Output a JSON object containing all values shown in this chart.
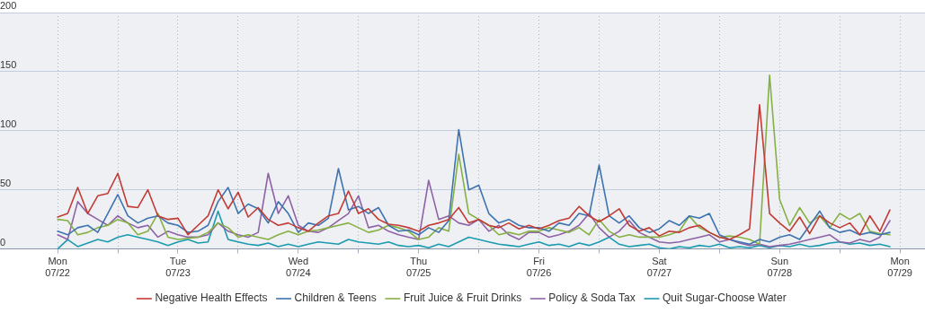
{
  "chart_data": {
    "type": "line",
    "x": [
      "--07-22T00:00",
      "--07-22T02:00",
      "--07-22T04:00",
      "--07-22T06:00",
      "--07-22T08:00",
      "--07-22T10:00",
      "--07-22T12:00",
      "--07-22T14:00",
      "--07-22T16:00",
      "--07-22T18:00",
      "--07-22T20:00",
      "--07-22T22:00",
      "--07-23T00:00",
      "--07-23T02:00",
      "--07-23T04:00",
      "--07-23T06:00",
      "--07-23T08:00",
      "--07-23T10:00",
      "--07-23T12:00",
      "--07-23T14:00",
      "--07-23T16:00",
      "--07-23T18:00",
      "--07-23T20:00",
      "--07-23T22:00",
      "--07-24T00:00",
      "--07-24T02:00",
      "--07-24T04:00",
      "--07-24T06:00",
      "--07-24T08:00",
      "--07-24T10:00",
      "--07-24T12:00",
      "--07-24T14:00",
      "--07-24T16:00",
      "--07-24T18:00",
      "--07-24T20:00",
      "--07-24T22:00",
      "--07-25T00:00",
      "--07-25T02:00",
      "--07-25T04:00",
      "--07-25T06:00",
      "--07-25T08:00",
      "--07-25T10:00",
      "--07-25T12:00",
      "--07-25T14:00",
      "--07-25T16:00",
      "--07-25T18:00",
      "--07-25T20:00",
      "--07-25T22:00",
      "--07-26T00:00",
      "--07-26T02:00",
      "--07-26T04:00",
      "--07-26T06:00",
      "--07-26T08:00",
      "--07-26T10:00",
      "--07-26T12:00",
      "--07-26T14:00",
      "--07-26T16:00",
      "--07-26T18:00",
      "--07-26T20:00",
      "--07-26T22:00",
      "--07-27T00:00",
      "--07-27T02:00",
      "--07-27T04:00",
      "--07-27T06:00",
      "--07-27T08:00",
      "--07-27T10:00",
      "--07-27T12:00",
      "--07-27T14:00",
      "--07-27T16:00",
      "--07-27T18:00",
      "--07-27T20:00",
      "--07-27T22:00",
      "--07-28T00:00",
      "--07-28T02:00",
      "--07-28T04:00",
      "--07-28T06:00",
      "--07-28T08:00",
      "--07-28T10:00",
      "--07-28T12:00",
      "--07-28T14:00",
      "--07-28T16:00",
      "--07-28T18:00",
      "--07-28T20:00",
      "--07-28T22:00"
    ],
    "series": [
      {
        "name": "Negative Health Effects",
        "color": "#c23b35",
        "values": [
          27,
          30,
          52,
          30,
          45,
          47,
          64,
          36,
          35,
          50,
          28,
          25,
          26,
          12,
          20,
          28,
          50,
          34,
          48,
          27,
          35,
          25,
          20,
          22,
          18,
          15,
          22,
          28,
          30,
          49,
          30,
          34,
          25,
          21,
          20,
          18,
          15,
          20,
          22,
          25,
          35,
          22,
          25,
          20,
          18,
          22,
          17,
          20,
          17,
          20,
          24,
          26,
          36,
          28,
          23,
          28,
          34,
          20,
          15,
          18,
          11,
          15,
          14,
          18,
          20,
          14,
          10,
          8,
          12,
          17,
          122,
          30,
          22,
          15,
          27,
          13,
          28,
          22,
          18,
          22,
          12,
          28,
          15,
          33
        ]
      },
      {
        "name": "Children & Teens",
        "color": "#3e73b0",
        "values": [
          15,
          12,
          18,
          20,
          14,
          30,
          46,
          28,
          22,
          26,
          28,
          22,
          20,
          14,
          15,
          20,
          40,
          52,
          30,
          38,
          34,
          22,
          40,
          30,
          14,
          22,
          20,
          26,
          68,
          33,
          36,
          30,
          35,
          20,
          15,
          16,
          12,
          18,
          14,
          24,
          101,
          50,
          54,
          30,
          22,
          25,
          20,
          18,
          18,
          15,
          22,
          20,
          30,
          28,
          71,
          28,
          22,
          28,
          18,
          14,
          17,
          24,
          20,
          28,
          26,
          30,
          12,
          8,
          6,
          4,
          8,
          6,
          10,
          12,
          8,
          20,
          32,
          18,
          14,
          16,
          12,
          14,
          12,
          14
        ]
      },
      {
        "name": "Fruit Juice & Fruit Drinks",
        "color": "#86b043",
        "values": [
          25,
          24,
          12,
          14,
          18,
          20,
          25,
          22,
          12,
          15,
          30,
          10,
          8,
          9,
          10,
          14,
          22,
          18,
          10,
          12,
          10,
          8,
          12,
          15,
          12,
          15,
          16,
          18,
          20,
          22,
          18,
          14,
          16,
          20,
          18,
          15,
          8,
          10,
          18,
          15,
          80,
          30,
          25,
          20,
          12,
          14,
          12,
          15,
          15,
          18,
          16,
          14,
          18,
          12,
          25,
          15,
          10,
          12,
          10,
          10,
          10,
          12,
          15,
          28,
          18,
          14,
          10,
          11,
          10,
          8,
          4,
          147,
          42,
          20,
          35,
          22,
          28,
          18,
          30,
          25,
          30,
          15,
          13,
          12
        ]
      },
      {
        "name": "Policy & Soda Tax",
        "color": "#8e62a6",
        "values": [
          12,
          8,
          40,
          30,
          25,
          20,
          28,
          22,
          18,
          20,
          10,
          15,
          12,
          10,
          10,
          12,
          22,
          15,
          12,
          10,
          14,
          64,
          30,
          45,
          20,
          15,
          14,
          18,
          24,
          30,
          45,
          18,
          20,
          15,
          12,
          10,
          8,
          58,
          25,
          28,
          22,
          20,
          25,
          15,
          20,
          12,
          8,
          14,
          14,
          10,
          12,
          15,
          20,
          30,
          18,
          10,
          15,
          24,
          14,
          10,
          6,
          5,
          6,
          8,
          10,
          12,
          6,
          8,
          5,
          3,
          4,
          2,
          3,
          4,
          6,
          8,
          10,
          12,
          6,
          5,
          8,
          6,
          10,
          24
        ]
      },
      {
        "name": "Quit Sugar-Choose Water",
        "color": "#1b9bb0",
        "values": [
          0,
          8,
          2,
          5,
          8,
          6,
          10,
          12,
          10,
          8,
          6,
          3,
          6,
          8,
          5,
          6,
          32,
          8,
          6,
          4,
          3,
          5,
          2,
          4,
          2,
          4,
          6,
          5,
          4,
          8,
          6,
          5,
          4,
          6,
          3,
          2,
          3,
          1,
          4,
          2,
          6,
          10,
          8,
          6,
          4,
          3,
          2,
          4,
          6,
          3,
          4,
          2,
          5,
          3,
          6,
          10,
          4,
          2,
          3,
          4,
          1,
          0,
          2,
          1,
          3,
          2,
          4,
          1,
          2,
          1,
          3,
          1,
          3,
          2,
          4,
          2,
          3,
          5,
          6,
          4,
          5,
          3,
          4,
          2
        ]
      }
    ],
    "xlim": [
      "--07-21T12:30",
      "--07-29T05:00"
    ],
    "xticks": [
      {
        "value": "--07-22",
        "label": "Mon\n07/22"
      },
      {
        "value": "--07-22T12:00",
        "label": null
      },
      {
        "value": "--07-23",
        "label": "Tue\n07/23"
      },
      {
        "value": "--07-23T12:00",
        "label": null
      },
      {
        "value": "--07-24",
        "label": "Wed\n07/24"
      },
      {
        "value": "--07-24T12:00",
        "label": null
      },
      {
        "value": "--07-25",
        "label": "Thu\n07/25"
      },
      {
        "value": "--07-25T12:00",
        "label": null
      },
      {
        "value": "--07-26",
        "label": "Fri\n07/26"
      },
      {
        "value": "--07-26T12:00",
        "label": null
      },
      {
        "value": "--07-27",
        "label": "Sat\n07/27"
      },
      {
        "value": "--07-27T12:00",
        "label": null
      },
      {
        "value": "--07-28",
        "label": "Sun\n07/28"
      },
      {
        "value": "--07-28T12:00",
        "label": null
      },
      {
        "value": "--07-29",
        "label": "Mon\n07/29"
      }
    ],
    "ylim": [
      0,
      200
    ],
    "yticks": [
      0,
      50,
      100,
      150,
      200
    ],
    "grid": true,
    "legend": "bottom",
    "marker": "none",
    "line_style": "solid"
  }
}
